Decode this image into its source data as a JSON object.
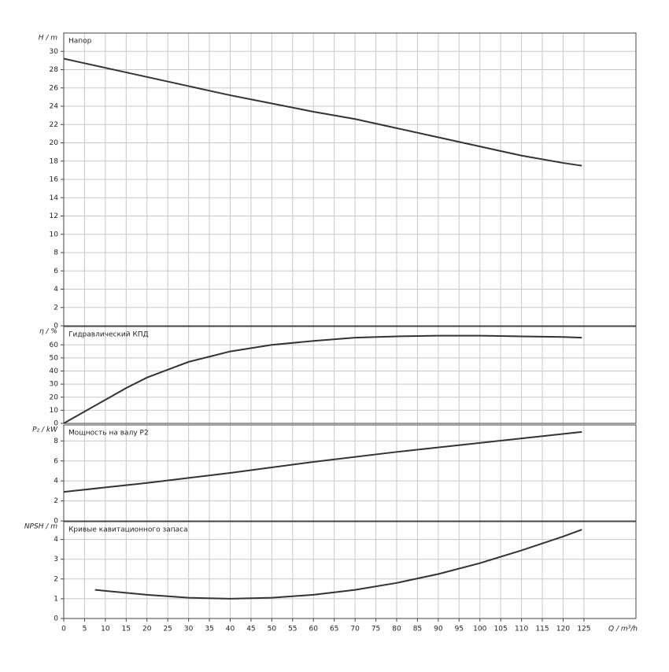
{
  "chart_data": [
    {
      "type": "line",
      "title": "Напор",
      "y_label": "H / m",
      "x": [
        0,
        10,
        20,
        30,
        40,
        50,
        60,
        70,
        80,
        90,
        100,
        110,
        120,
        124.5
      ],
      "series": [
        {
          "name": "Напор",
          "color": "#333333",
          "values": [
            29.2,
            28.2,
            27.2,
            26.2,
            25.2,
            24.3,
            23.4,
            22.6,
            21.6,
            20.6,
            19.6,
            18.6,
            17.8,
            17.5
          ]
        }
      ],
      "xlim": [
        0,
        137.5
      ],
      "ylim": [
        0,
        32
      ],
      "yticks": [
        0,
        2,
        4,
        6,
        8,
        10,
        12,
        14,
        16,
        18,
        20,
        22,
        24,
        26,
        28,
        30
      ],
      "grid": true
    },
    {
      "type": "line",
      "title": "Гидравлический КПД",
      "y_label": "η / %",
      "x": [
        0,
        5,
        10,
        15,
        20,
        25,
        30,
        35,
        40,
        50,
        60,
        70,
        80,
        90,
        100,
        110,
        120,
        124.5
      ],
      "series": [
        {
          "name": "Гидравлический КПД",
          "color": "#333333",
          "values": [
            0,
            9,
            18,
            27,
            35,
            41,
            47,
            51,
            55,
            60,
            63,
            65.5,
            66.5,
            67,
            67,
            66.5,
            66,
            65.5
          ]
        }
      ],
      "xlim": [
        0,
        137.5
      ],
      "ylim": [
        0,
        74
      ],
      "yticks": [
        0,
        10,
        20,
        30,
        40,
        50,
        60
      ],
      "grid": true
    },
    {
      "type": "line",
      "title": "Мощность на валу P2",
      "y_label": "P₂ / kW",
      "x": [
        0,
        20,
        40,
        60,
        80,
        100,
        124.5
      ],
      "series": [
        {
          "name": "Мощность на валу P2",
          "color": "#333333",
          "values": [
            2.9,
            3.8,
            4.8,
            5.9,
            6.9,
            7.8,
            8.9
          ]
        }
      ],
      "xlim": [
        0,
        137.5
      ],
      "ylim": [
        0,
        9.6
      ],
      "yticks": [
        0,
        2,
        4,
        6,
        8
      ],
      "grid": true
    },
    {
      "type": "line",
      "title": "Кривые кавитационного запаса",
      "y_label": "NPSH / m",
      "x_label": "Q / m³/h",
      "x": [
        7.5,
        20,
        30,
        40,
        50,
        60,
        70,
        80,
        90,
        100,
        110,
        120,
        124.5
      ],
      "series": [
        {
          "name": "Кривые кавитационного запаса",
          "color": "#333333",
          "values": [
            1.45,
            1.2,
            1.05,
            1.0,
            1.05,
            1.2,
            1.45,
            1.8,
            2.25,
            2.8,
            3.45,
            4.15,
            4.5
          ]
        }
      ],
      "xlim": [
        0,
        137.5
      ],
      "ylim": [
        0,
        4.9
      ],
      "yticks": [
        0,
        1,
        2,
        3,
        4
      ],
      "xticks": [
        0,
        5,
        10,
        15,
        20,
        25,
        30,
        35,
        40,
        45,
        50,
        55,
        60,
        65,
        70,
        75,
        80,
        85,
        90,
        95,
        100,
        105,
        110,
        115,
        120,
        125
      ],
      "grid": true
    }
  ]
}
